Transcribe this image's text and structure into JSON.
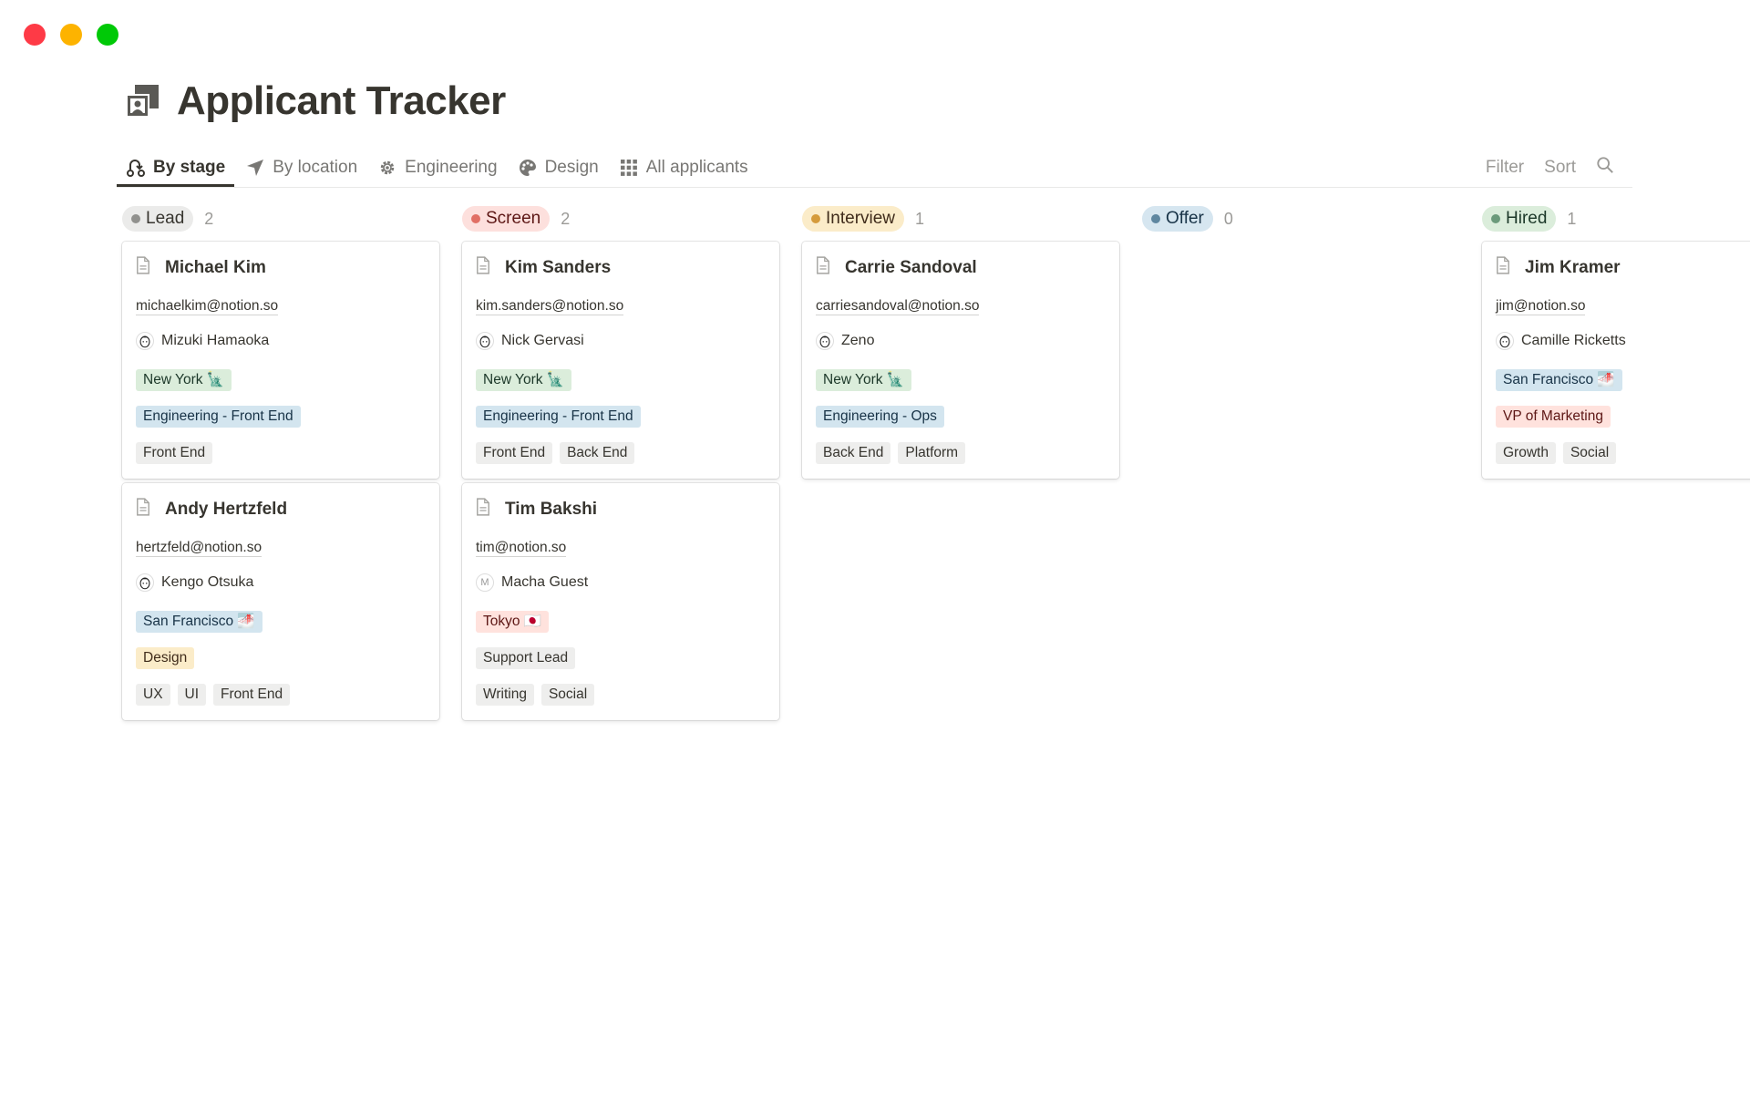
{
  "window": {
    "controls": [
      "close",
      "minimize",
      "maximize"
    ],
    "colors": {
      "close": "#fe3a46",
      "minimize": "#fdb300",
      "maximize": "#00c907"
    }
  },
  "page": {
    "title": "Applicant Tracker",
    "icon": "contact-card-icon"
  },
  "tabs": [
    {
      "label": "By stage",
      "icon": "stage-icon",
      "active": true
    },
    {
      "label": "By location",
      "icon": "location-arrow-icon",
      "active": false
    },
    {
      "label": "Engineering",
      "icon": "gear-icon",
      "active": false
    },
    {
      "label": "Design",
      "icon": "palette-icon",
      "active": false
    },
    {
      "label": "All applicants",
      "icon": "grid-icon",
      "active": false
    }
  ],
  "toolbar": {
    "filter_label": "Filter",
    "sort_label": "Sort",
    "search_icon": "search-icon"
  },
  "tag_colors": {
    "green": {
      "bg": "#dbeddb",
      "fg": "#1c3829"
    },
    "blue": {
      "bg": "#d3e5ef",
      "fg": "#183347"
    },
    "grey": {
      "bg": "#eeeeed",
      "fg": "#37352f"
    },
    "yellow": {
      "bg": "#fbecc9",
      "fg": "#402c1b"
    },
    "red": {
      "bg": "#ffe2dd",
      "fg": "#5d1715"
    }
  },
  "columns": [
    {
      "label": "Lead",
      "count": "2",
      "bg": "#ebebea",
      "dot": "#91918e",
      "fg": "#37352f",
      "cards": [
        {
          "name": "Michael Kim",
          "email": "michaelkim@notion.so",
          "person": "Mizuki Hamaoka",
          "avatar": "",
          "location": {
            "label": "New York 🗽",
            "color": "green"
          },
          "department": {
            "label": "Engineering - Front End",
            "color": "blue"
          },
          "skills": [
            "Front End"
          ]
        },
        {
          "name": "Andy Hertzfeld",
          "email": "hertzfeld@notion.so",
          "person": "Kengo Otsuka",
          "avatar": "",
          "location": {
            "label": "San Francisco 🌁",
            "color": "blue"
          },
          "department": {
            "label": "Design",
            "color": "yellow"
          },
          "skills": [
            "UX",
            "UI",
            "Front End"
          ]
        }
      ]
    },
    {
      "label": "Screen",
      "count": "2",
      "bg": "#fde0dd",
      "dot": "#e16f64",
      "fg": "#5d1715",
      "cards": [
        {
          "name": "Kim Sanders",
          "email": "kim.sanders@notion.so",
          "person": "Nick Gervasi",
          "avatar": "",
          "location": {
            "label": "New York 🗽",
            "color": "green"
          },
          "department": {
            "label": "Engineering - Front End",
            "color": "blue"
          },
          "skills": [
            "Front End",
            "Back End"
          ]
        },
        {
          "name": "Tim Bakshi",
          "email": "tim@notion.so",
          "person": "Macha Guest",
          "avatar": "M",
          "location": {
            "label": "Tokyo 🇯🇵",
            "color": "red"
          },
          "department": {
            "label": "Support Lead",
            "color": "grey"
          },
          "skills": [
            "Writing",
            "Social"
          ]
        }
      ]
    },
    {
      "label": "Interview",
      "count": "1",
      "bg": "#fbecc9",
      "dot": "#d59b3b",
      "fg": "#402c1b",
      "cards": [
        {
          "name": "Carrie Sandoval",
          "email": "carriesandoval@notion.so",
          "person": "Zeno",
          "avatar": "",
          "location": {
            "label": "New York 🗽",
            "color": "green"
          },
          "department": {
            "label": "Engineering - Ops",
            "color": "blue"
          },
          "skills": [
            "Back End",
            "Platform"
          ]
        }
      ]
    },
    {
      "label": "Offer",
      "count": "0",
      "bg": "#d6e6f0",
      "dot": "#5f87a0",
      "fg": "#183347",
      "cards": []
    },
    {
      "label": "Hired",
      "count": "1",
      "bg": "#dbeddb",
      "dot": "#6b9a7b",
      "fg": "#1c3829",
      "cards": [
        {
          "name": "Jim Kramer",
          "email": "jim@notion.so",
          "person": "Camille Ricketts",
          "avatar": "",
          "location": {
            "label": "San Francisco 🌁",
            "color": "blue"
          },
          "department": {
            "label": "VP of Marketing",
            "color": "red"
          },
          "skills": [
            "Growth",
            "Social"
          ]
        }
      ]
    }
  ]
}
